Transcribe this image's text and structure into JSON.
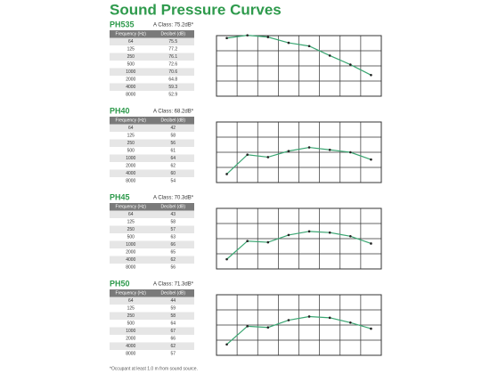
{
  "title": "Sound Pressure Curves",
  "columns": [
    "Frequency (Hz)",
    "Decibel (dB)"
  ],
  "sections": [
    {
      "name": "PH535",
      "a_class": "A Class: 75.2dB*",
      "ylim": [
        40,
        77
      ],
      "rows": [
        [
          64,
          75.5
        ],
        [
          125,
          77.2
        ],
        [
          250,
          76.1
        ],
        [
          500,
          72.6
        ],
        [
          1000,
          70.6
        ],
        [
          2000,
          64.8
        ],
        [
          4000,
          59.3
        ],
        [
          8000,
          52.9
        ]
      ]
    },
    {
      "name": "PH40",
      "a_class": "A Class: 68.2dB*",
      "ylim": [
        35,
        85
      ],
      "rows": [
        [
          64,
          42
        ],
        [
          125,
          58
        ],
        [
          250,
          56
        ],
        [
          500,
          61
        ],
        [
          1000,
          64
        ],
        [
          2000,
          62
        ],
        [
          4000,
          60
        ],
        [
          8000,
          54
        ]
      ]
    },
    {
      "name": "PH45",
      "a_class": "A Class: 70.3dB*",
      "ylim": [
        35,
        85
      ],
      "rows": [
        [
          64,
          43
        ],
        [
          125,
          58
        ],
        [
          250,
          57
        ],
        [
          500,
          63
        ],
        [
          1000,
          66
        ],
        [
          2000,
          65
        ],
        [
          4000,
          62
        ],
        [
          8000,
          56
        ]
      ]
    },
    {
      "name": "PH50",
      "a_class": "A Class: 71.3dB*",
      "ylim": [
        35,
        85
      ],
      "rows": [
        [
          64,
          44
        ],
        [
          125,
          59
        ],
        [
          250,
          58
        ],
        [
          500,
          64
        ],
        [
          1000,
          67
        ],
        [
          2000,
          66
        ],
        [
          4000,
          62
        ],
        [
          8000,
          57
        ]
      ]
    }
  ],
  "footnote": "*Occupant at least 1.0 m from sound source."
}
